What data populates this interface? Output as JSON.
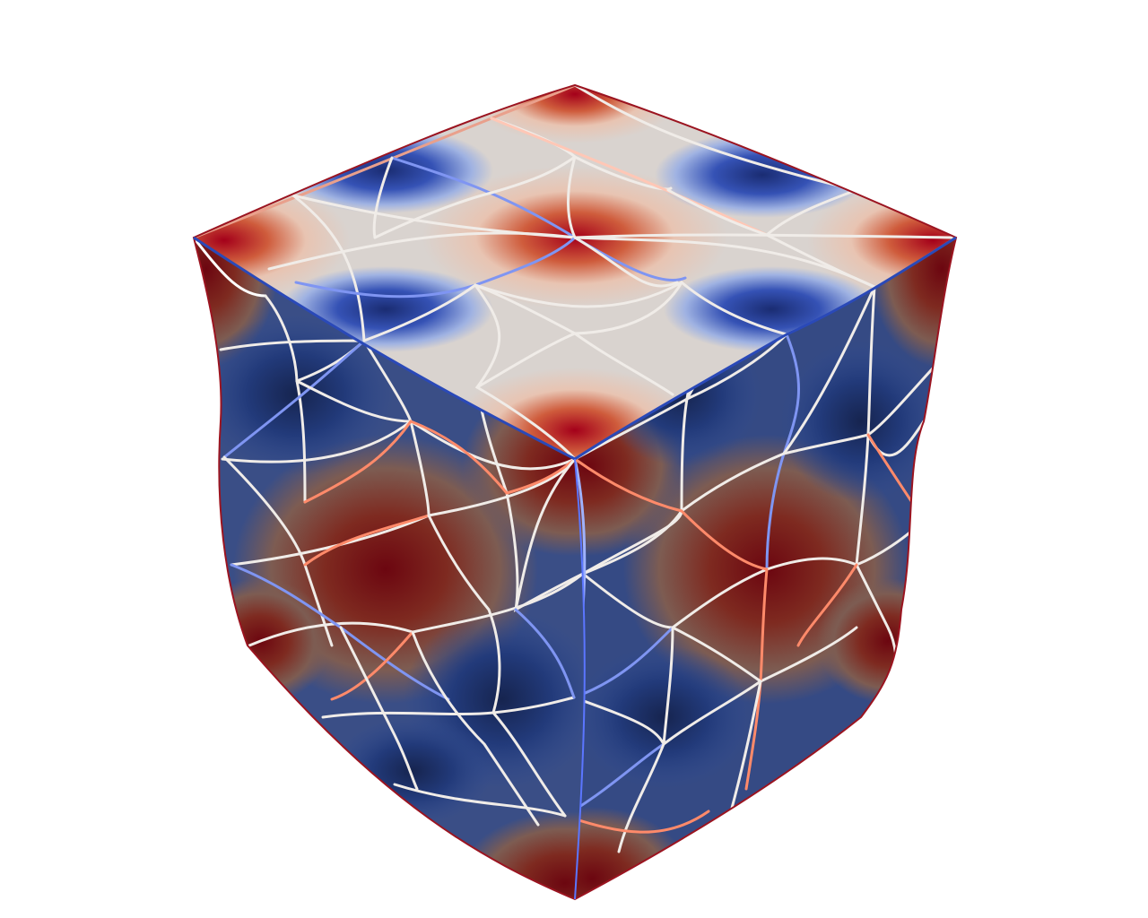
{
  "render": {
    "background_color": "#ffffff",
    "object": "cube",
    "mesh": "triangulated",
    "colormap": {
      "name": "coolwarm",
      "low": "#1d2f73",
      "mid": "#e8e2dc",
      "high": "#b1001c"
    },
    "mesh_line_colors": {
      "neutral": "#f0ece8",
      "warm": "#ff8a6a",
      "cool": "#6f8cff"
    }
  }
}
